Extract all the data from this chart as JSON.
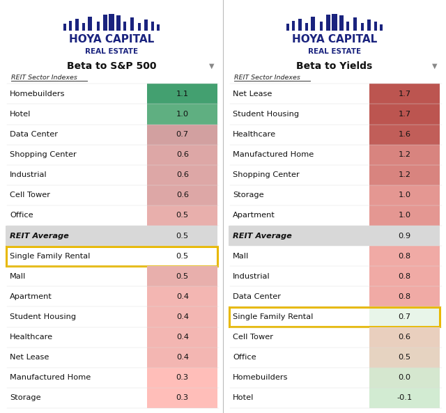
{
  "left_title": "Beta to S&P 500",
  "right_title": "Beta to Yields",
  "subtitle": "REIT Sector Indexes",
  "left_rows": [
    {
      "label": "Homebuilders",
      "value": 1.1,
      "bold": false,
      "highlight": false
    },
    {
      "label": "Hotel",
      "value": 1.0,
      "bold": false,
      "highlight": false
    },
    {
      "label": "Data Center",
      "value": 0.7,
      "bold": false,
      "highlight": false
    },
    {
      "label": "Shopping Center",
      "value": 0.6,
      "bold": false,
      "highlight": false
    },
    {
      "label": "Industrial",
      "value": 0.6,
      "bold": false,
      "highlight": false
    },
    {
      "label": "Cell Tower",
      "value": 0.6,
      "bold": false,
      "highlight": false
    },
    {
      "label": "Office",
      "value": 0.5,
      "bold": false,
      "highlight": false
    },
    {
      "label": "REIT Average",
      "value": 0.5,
      "bold": true,
      "highlight": false
    },
    {
      "label": "Single Family Rental",
      "value": 0.5,
      "bold": false,
      "highlight": true
    },
    {
      "label": "Mall",
      "value": 0.5,
      "bold": false,
      "highlight": false
    },
    {
      "label": "Apartment",
      "value": 0.4,
      "bold": false,
      "highlight": false
    },
    {
      "label": "Student Housing",
      "value": 0.4,
      "bold": false,
      "highlight": false
    },
    {
      "label": "Healthcare",
      "value": 0.4,
      "bold": false,
      "highlight": false
    },
    {
      "label": "Net Lease",
      "value": 0.4,
      "bold": false,
      "highlight": false
    },
    {
      "label": "Manufactured Home",
      "value": 0.3,
      "bold": false,
      "highlight": false
    },
    {
      "label": "Storage",
      "value": 0.3,
      "bold": false,
      "highlight": false
    }
  ],
  "right_rows": [
    {
      "label": "Net Lease",
      "value": 1.7,
      "bold": false,
      "highlight": false
    },
    {
      "label": "Student Housing",
      "value": 1.7,
      "bold": false,
      "highlight": false
    },
    {
      "label": "Healthcare",
      "value": 1.6,
      "bold": false,
      "highlight": false
    },
    {
      "label": "Manufactured Home",
      "value": 1.2,
      "bold": false,
      "highlight": false
    },
    {
      "label": "Shopping Center",
      "value": 1.2,
      "bold": false,
      "highlight": false
    },
    {
      "label": "Storage",
      "value": 1.0,
      "bold": false,
      "highlight": false
    },
    {
      "label": "Apartment",
      "value": 1.0,
      "bold": false,
      "highlight": false
    },
    {
      "label": "REIT Average",
      "value": 0.9,
      "bold": true,
      "highlight": false
    },
    {
      "label": "Mall",
      "value": 0.8,
      "bold": false,
      "highlight": false
    },
    {
      "label": "Industrial",
      "value": 0.8,
      "bold": false,
      "highlight": false
    },
    {
      "label": "Data Center",
      "value": 0.8,
      "bold": false,
      "highlight": false
    },
    {
      "label": "Single Family Rental",
      "value": 0.7,
      "bold": false,
      "highlight": true
    },
    {
      "label": "Cell Tower",
      "value": 0.6,
      "bold": false,
      "highlight": false
    },
    {
      "label": "Office",
      "value": 0.5,
      "bold": false,
      "highlight": false
    },
    {
      "label": "Homebuilders",
      "value": 0.0,
      "bold": false,
      "highlight": false
    },
    {
      "label": "Hotel",
      "value": -0.1,
      "bold": false,
      "highlight": false
    }
  ],
  "highlight_color": "#e8b800",
  "bg_color": "#ffffff",
  "navy": "#1a237e",
  "average_bg": "#d8d8d8",
  "text_dark": "#111111"
}
